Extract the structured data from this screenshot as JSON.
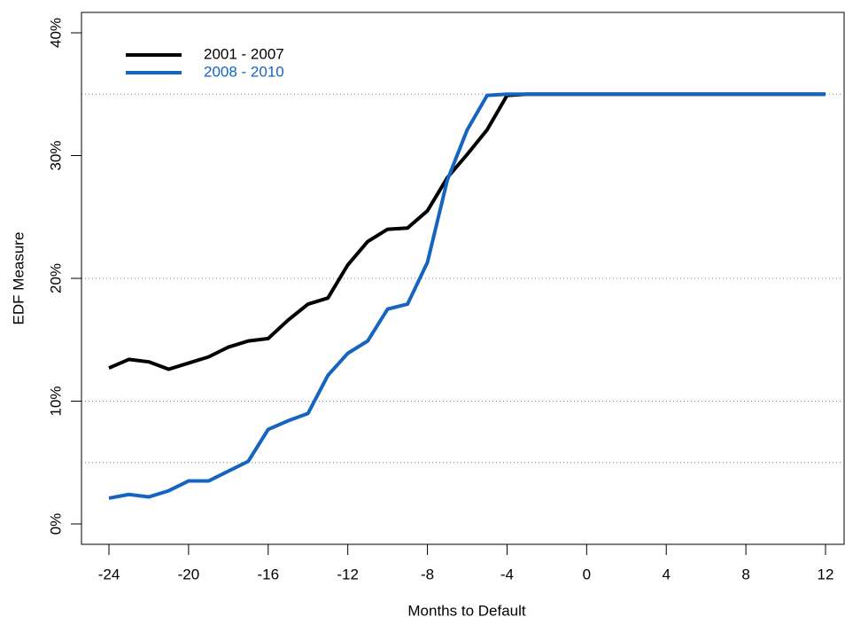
{
  "chart_data": {
    "type": "line",
    "x_label": "Months to Default",
    "y_label": "EDF Measure",
    "x": [
      -24,
      -23,
      -22,
      -21,
      -20,
      -19,
      -18,
      -17,
      -16,
      -15,
      -14,
      -13,
      -12,
      -11,
      -10,
      -9,
      -8,
      -7,
      -6,
      -5,
      -4,
      -3,
      -2,
      -1,
      0,
      1,
      2,
      3,
      4,
      5,
      6,
      7,
      8,
      9,
      10,
      11,
      12
    ],
    "series": [
      {
        "name": "2001 - 2007",
        "color": "#000000",
        "values": [
          12.7,
          13.4,
          13.2,
          12.6,
          13.1,
          13.6,
          14.4,
          14.9,
          15.1,
          16.6,
          17.9,
          18.4,
          21.1,
          23.0,
          24.0,
          24.1,
          25.5,
          28.2,
          30.1,
          32.1,
          34.9,
          35,
          35,
          35,
          35,
          35,
          35,
          35,
          35,
          35,
          35,
          35,
          35,
          35,
          35,
          35,
          35
        ]
      },
      {
        "name": "2008 - 2010",
        "color": "#1565c0",
        "values": [
          2.1,
          2.4,
          2.2,
          2.7,
          3.5,
          3.5,
          4.3,
          5.1,
          7.7,
          8.4,
          9.0,
          12.1,
          13.9,
          14.9,
          17.5,
          17.9,
          21.3,
          28.0,
          32.1,
          34.9,
          35,
          35,
          35,
          35,
          35,
          35,
          35,
          35,
          35,
          35,
          35,
          35,
          35,
          35,
          35,
          35,
          35
        ]
      }
    ],
    "xlim": [
      -24,
      12
    ],
    "xticks": [
      -24,
      -20,
      -16,
      -12,
      -8,
      -4,
      0,
      4,
      8,
      12
    ],
    "ylim": [
      0,
      40
    ],
    "yticks": [
      {
        "value": 0,
        "label": "0%"
      },
      {
        "value": 10,
        "label": "10%"
      },
      {
        "value": 20,
        "label": "20%"
      },
      {
        "value": 30,
        "label": "30%"
      },
      {
        "value": 40,
        "label": "40%"
      }
    ],
    "grid_lines": [
      5,
      10,
      20,
      35
    ],
    "legend": "top-left"
  }
}
